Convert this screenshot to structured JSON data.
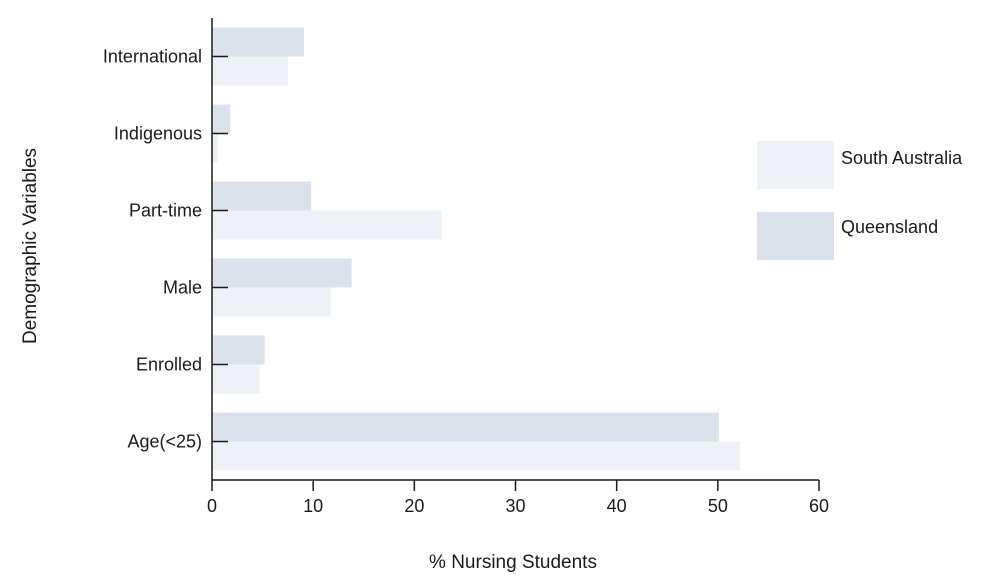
{
  "chart_data": {
    "type": "bar",
    "orientation": "horizontal",
    "categories": [
      "International",
      "Indigenous",
      "Part-time",
      "Male",
      "Enrolled",
      "Age(<25)"
    ],
    "series": [
      {
        "name": "South Australia",
        "values": [
          7.5,
          0.6,
          22.7,
          11.7,
          4.7,
          52.2
        ]
      },
      {
        "name": "Queensland",
        "values": [
          9.1,
          1.8,
          9.8,
          13.8,
          5.2,
          50.1
        ]
      }
    ],
    "xlabel": "% Nursing Students",
    "ylabel": "Demographic Variables",
    "xlim": [
      0,
      60
    ],
    "xticks": [
      "0",
      "10",
      "20",
      "30",
      "40",
      "50",
      "60"
    ],
    "grid": false,
    "legend_position": "right",
    "colors": {
      "South Australia": "#eef1f6",
      "Queensland": "#dbe2ec"
    }
  }
}
